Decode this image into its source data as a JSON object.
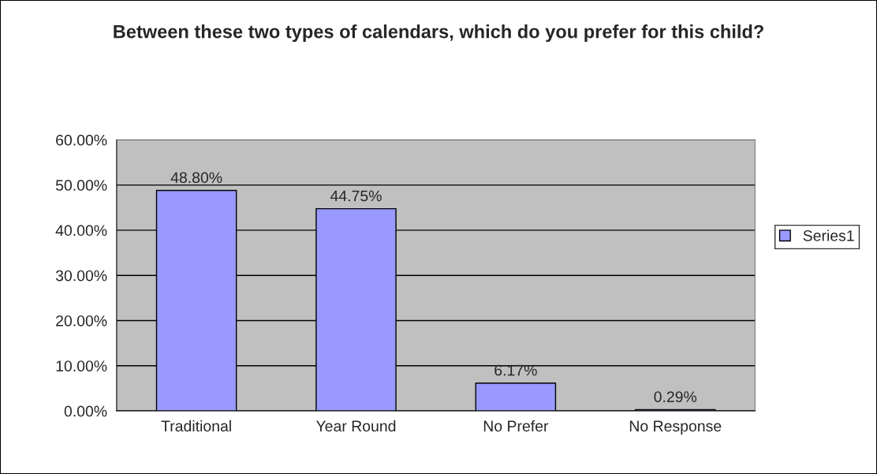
{
  "chart_data": {
    "type": "bar",
    "title": "Between these two types of calendars, which do you prefer for this child?",
    "categories": [
      "Traditional",
      "Year Round",
      "No Prefer",
      "No Response"
    ],
    "series": [
      {
        "name": "Series1",
        "color": "#9999ff",
        "values": [
          48.8,
          44.75,
          6.17,
          0.29
        ],
        "value_labels": [
          "48.80%",
          "44.75%",
          "6.17%",
          "0.29%"
        ]
      }
    ],
    "ylim": [
      0,
      60
    ],
    "yticks": [
      {
        "value": 0,
        "label": "0.00%"
      },
      {
        "value": 10,
        "label": "10.00%"
      },
      {
        "value": 20,
        "label": "20.00%"
      },
      {
        "value": 30,
        "label": "30.00%"
      },
      {
        "value": 40,
        "label": "40.00%"
      },
      {
        "value": 50,
        "label": "50.00%"
      },
      {
        "value": 60,
        "label": "60.00%"
      }
    ],
    "grid": "y",
    "legend": "right"
  }
}
